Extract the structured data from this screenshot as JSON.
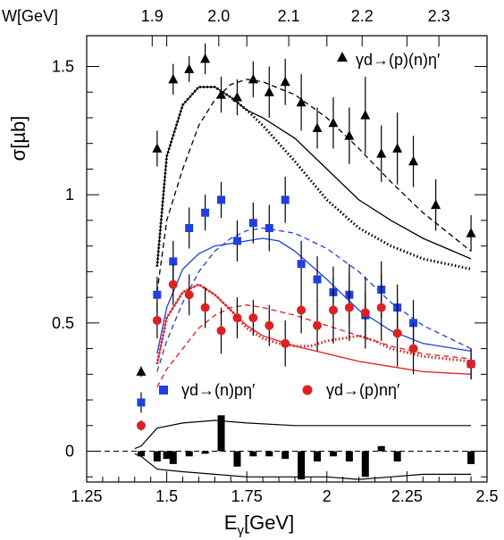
{
  "chart_data": {
    "type": "scatter",
    "title": "",
    "xlabel_base": "E",
    "xlabel_sub": "γ",
    "xlabel_unit": "[GeV]",
    "ylabel": "σ[µb]",
    "top_axis_label": "W[GeV]",
    "xlim": [
      1.25,
      2.5
    ],
    "ylim": [
      -0.12,
      1.62
    ],
    "x_ticks": [
      "1.25",
      "1.5",
      "1.75",
      "2",
      "2.25",
      "2.5"
    ],
    "y_ticks": [
      "0",
      "0.5",
      "1",
      "1.5"
    ],
    "top_ticks": [
      "1.9",
      "2.0",
      "2.1",
      "2.2",
      "2.3"
    ],
    "grid": false,
    "legend": [
      {
        "label": "γd→(p)(n)η′",
        "marker": "triangle",
        "color": "#000000",
        "position": "top-right"
      },
      {
        "label": "γd→(n)pη′",
        "marker": "square",
        "color": "#1f3fe0",
        "position": "bottom-center"
      },
      {
        "label": "γd→(p)nη′",
        "marker": "circle",
        "color": "#e01f1f",
        "position": "bottom-right"
      }
    ],
    "series": [
      {
        "name": "γd→(p)(n)η′",
        "marker": "triangle",
        "color": "#000000",
        "points": [
          {
            "x": 1.42,
            "y": 0.31,
            "err": 0.02
          },
          {
            "x": 1.47,
            "y": 1.18,
            "err": 0.07
          },
          {
            "x": 1.52,
            "y": 1.45,
            "err": 0.06
          },
          {
            "x": 1.57,
            "y": 1.49,
            "err": 0.05
          },
          {
            "x": 1.62,
            "y": 1.53,
            "err": 0.06
          },
          {
            "x": 1.67,
            "y": 1.39,
            "err": 0.07
          },
          {
            "x": 1.72,
            "y": 1.38,
            "err": 0.07
          },
          {
            "x": 1.77,
            "y": 1.45,
            "err": 0.07
          },
          {
            "x": 1.82,
            "y": 1.4,
            "err": 0.1
          },
          {
            "x": 1.87,
            "y": 1.44,
            "err": 0.09
          },
          {
            "x": 1.92,
            "y": 1.36,
            "err": 0.11
          },
          {
            "x": 1.97,
            "y": 1.26,
            "err": 0.08
          },
          {
            "x": 2.02,
            "y": 1.28,
            "err": 0.1
          },
          {
            "x": 2.07,
            "y": 1.23,
            "err": 0.11
          },
          {
            "x": 2.12,
            "y": 1.31,
            "err": 0.15
          },
          {
            "x": 2.17,
            "y": 1.16,
            "err": 0.11
          },
          {
            "x": 2.22,
            "y": 1.18,
            "err": 0.14
          },
          {
            "x": 2.27,
            "y": 1.13,
            "err": 0.1
          },
          {
            "x": 2.34,
            "y": 0.96,
            "err": 0.1
          },
          {
            "x": 2.45,
            "y": 0.85,
            "err": 0.07
          }
        ]
      },
      {
        "name": "γd→(n)pη′",
        "marker": "square",
        "color": "#1f3fe0",
        "points": [
          {
            "x": 1.42,
            "y": 0.19,
            "err": 0.04
          },
          {
            "x": 1.47,
            "y": 0.61,
            "err": 0.07
          },
          {
            "x": 1.52,
            "y": 0.74,
            "err": 0.08
          },
          {
            "x": 1.57,
            "y": 0.87,
            "err": 0.08
          },
          {
            "x": 1.62,
            "y": 0.93,
            "err": 0.07
          },
          {
            "x": 1.67,
            "y": 0.98,
            "err": 0.07
          },
          {
            "x": 1.72,
            "y": 0.82,
            "err": 0.08
          },
          {
            "x": 1.77,
            "y": 0.89,
            "err": 0.08
          },
          {
            "x": 1.82,
            "y": 0.87,
            "err": 0.09
          },
          {
            "x": 1.87,
            "y": 0.98,
            "err": 0.09
          },
          {
            "x": 1.92,
            "y": 0.73,
            "err": 0.09
          },
          {
            "x": 1.97,
            "y": 0.67,
            "err": 0.09
          },
          {
            "x": 2.02,
            "y": 0.62,
            "err": 0.1
          },
          {
            "x": 2.07,
            "y": 0.61,
            "err": 0.12
          },
          {
            "x": 2.12,
            "y": 0.53,
            "err": 0.09
          },
          {
            "x": 2.17,
            "y": 0.63,
            "err": 0.11
          },
          {
            "x": 2.22,
            "y": 0.56,
            "err": 0.09
          },
          {
            "x": 2.27,
            "y": 0.5,
            "err": 0.09
          },
          {
            "x": 2.45,
            "y": 0.34,
            "err": 0.06
          }
        ]
      },
      {
        "name": "γd→(p)nη′",
        "marker": "circle",
        "color": "#e01f1f",
        "points": [
          {
            "x": 1.42,
            "y": 0.1,
            "err": 0.02
          },
          {
            "x": 1.47,
            "y": 0.51,
            "err": 0.07
          },
          {
            "x": 1.52,
            "y": 0.65,
            "err": 0.08
          },
          {
            "x": 1.57,
            "y": 0.61,
            "err": 0.08
          },
          {
            "x": 1.62,
            "y": 0.56,
            "err": 0.08
          },
          {
            "x": 1.67,
            "y": 0.47,
            "err": 0.09
          },
          {
            "x": 1.72,
            "y": 0.52,
            "err": 0.08
          },
          {
            "x": 1.77,
            "y": 0.52,
            "err": 0.07
          },
          {
            "x": 1.82,
            "y": 0.49,
            "err": 0.08
          },
          {
            "x": 1.87,
            "y": 0.42,
            "err": 0.09
          },
          {
            "x": 1.92,
            "y": 0.55,
            "err": 0.09
          },
          {
            "x": 1.97,
            "y": 0.49,
            "err": 0.1
          },
          {
            "x": 2.02,
            "y": 0.55,
            "err": 0.13
          },
          {
            "x": 2.07,
            "y": 0.56,
            "err": 0.13
          },
          {
            "x": 2.12,
            "y": 0.54,
            "err": 0.14
          },
          {
            "x": 2.17,
            "y": 0.56,
            "err": 0.13
          },
          {
            "x": 2.22,
            "y": 0.46,
            "err": 0.13
          },
          {
            "x": 2.27,
            "y": 0.4,
            "err": 0.1
          },
          {
            "x": 2.45,
            "y": 0.34,
            "err": 0.06
          }
        ]
      }
    ],
    "curves": [
      {
        "color": "#000000",
        "style": "solid",
        "points": [
          [
            1.47,
            0.72
          ],
          [
            1.5,
            1.15
          ],
          [
            1.55,
            1.35
          ],
          [
            1.6,
            1.42
          ],
          [
            1.65,
            1.42
          ],
          [
            1.7,
            1.38
          ],
          [
            1.75,
            1.33
          ],
          [
            1.8,
            1.3
          ],
          [
            1.9,
            1.22
          ],
          [
            2.0,
            1.1
          ],
          [
            2.1,
            0.98
          ],
          [
            2.2,
            0.9
          ],
          [
            2.3,
            0.83
          ],
          [
            2.45,
            0.75
          ]
        ]
      },
      {
        "color": "#000000",
        "style": "dashed",
        "points": [
          [
            1.47,
            0.62
          ],
          [
            1.5,
            0.9
          ],
          [
            1.55,
            1.1
          ],
          [
            1.6,
            1.27
          ],
          [
            1.65,
            1.37
          ],
          [
            1.7,
            1.43
          ],
          [
            1.75,
            1.45
          ],
          [
            1.8,
            1.44
          ],
          [
            1.9,
            1.39
          ],
          [
            2.0,
            1.3
          ],
          [
            2.1,
            1.18
          ],
          [
            2.2,
            1.05
          ],
          [
            2.3,
            0.93
          ],
          [
            2.45,
            0.78
          ]
        ]
      },
      {
        "color": "#000000",
        "style": "dotted",
        "points": [
          [
            1.47,
            0.72
          ],
          [
            1.5,
            1.15
          ],
          [
            1.55,
            1.35
          ],
          [
            1.6,
            1.42
          ],
          [
            1.65,
            1.42
          ],
          [
            1.7,
            1.38
          ],
          [
            1.75,
            1.33
          ],
          [
            1.8,
            1.27
          ],
          [
            1.9,
            1.13
          ],
          [
            2.0,
            0.98
          ],
          [
            2.1,
            0.87
          ],
          [
            2.2,
            0.8
          ],
          [
            2.3,
            0.75
          ],
          [
            2.45,
            0.71
          ]
        ]
      },
      {
        "color": "#1f3fe0",
        "style": "solid",
        "points": [
          [
            1.47,
            0.38
          ],
          [
            1.5,
            0.56
          ],
          [
            1.55,
            0.71
          ],
          [
            1.6,
            0.77
          ],
          [
            1.65,
            0.8
          ],
          [
            1.7,
            0.81
          ],
          [
            1.75,
            0.82
          ],
          [
            1.8,
            0.83
          ],
          [
            1.85,
            0.82
          ],
          [
            1.9,
            0.78
          ],
          [
            2.0,
            0.67
          ],
          [
            2.1,
            0.55
          ],
          [
            2.2,
            0.47
          ],
          [
            2.3,
            0.42
          ],
          [
            2.45,
            0.39
          ]
        ]
      },
      {
        "color": "#1f3fe0",
        "style": "dashed",
        "points": [
          [
            1.47,
            0.31
          ],
          [
            1.5,
            0.43
          ],
          [
            1.55,
            0.58
          ],
          [
            1.6,
            0.7
          ],
          [
            1.65,
            0.78
          ],
          [
            1.7,
            0.83
          ],
          [
            1.75,
            0.86
          ],
          [
            1.8,
            0.87
          ],
          [
            1.9,
            0.85
          ],
          [
            2.0,
            0.79
          ],
          [
            2.1,
            0.7
          ],
          [
            2.2,
            0.58
          ],
          [
            2.3,
            0.49
          ],
          [
            2.45,
            0.4
          ]
        ]
      },
      {
        "color": "#e01f1f",
        "style": "solid",
        "points": [
          [
            1.47,
            0.34
          ],
          [
            1.5,
            0.52
          ],
          [
            1.55,
            0.62
          ],
          [
            1.6,
            0.65
          ],
          [
            1.65,
            0.61
          ],
          [
            1.7,
            0.55
          ],
          [
            1.75,
            0.49
          ],
          [
            1.8,
            0.45
          ],
          [
            1.9,
            0.41
          ],
          [
            2.0,
            0.38
          ],
          [
            2.1,
            0.35
          ],
          [
            2.2,
            0.33
          ],
          [
            2.3,
            0.31
          ],
          [
            2.45,
            0.3
          ]
        ]
      },
      {
        "color": "#e01f1f",
        "style": "dashed",
        "points": [
          [
            1.47,
            0.25
          ],
          [
            1.5,
            0.32
          ],
          [
            1.55,
            0.4
          ],
          [
            1.6,
            0.48
          ],
          [
            1.65,
            0.53
          ],
          [
            1.7,
            0.56
          ],
          [
            1.75,
            0.57
          ],
          [
            1.8,
            0.56
          ],
          [
            1.9,
            0.53
          ],
          [
            2.0,
            0.49
          ],
          [
            2.1,
            0.45
          ],
          [
            2.2,
            0.41
          ],
          [
            2.3,
            0.38
          ],
          [
            2.45,
            0.36
          ]
        ]
      },
      {
        "color": "#e01f1f",
        "style": "dotted",
        "points": [
          [
            1.47,
            0.34
          ],
          [
            1.5,
            0.52
          ],
          [
            1.55,
            0.62
          ],
          [
            1.6,
            0.65
          ],
          [
            1.65,
            0.61
          ],
          [
            1.7,
            0.55
          ],
          [
            1.75,
            0.48
          ],
          [
            1.8,
            0.44
          ],
          [
            1.85,
            0.42
          ],
          [
            1.9,
            0.41
          ],
          [
            1.95,
            0.41
          ],
          [
            2.0,
            0.43
          ],
          [
            2.05,
            0.44
          ],
          [
            2.1,
            0.45
          ],
          [
            2.15,
            0.43
          ],
          [
            2.2,
            0.4
          ],
          [
            2.3,
            0.37
          ],
          [
            2.45,
            0.35
          ]
        ]
      }
    ],
    "systematic_band": {
      "upper": [
        [
          1.4,
          0.01
        ],
        [
          1.42,
          0.02
        ],
        [
          1.47,
          0.09
        ],
        [
          1.55,
          0.11
        ],
        [
          1.65,
          0.12
        ],
        [
          1.75,
          0.11
        ],
        [
          1.9,
          0.1
        ],
        [
          2.0,
          0.1
        ],
        [
          2.1,
          0.1
        ],
        [
          2.2,
          0.1
        ],
        [
          2.3,
          0.1
        ],
        [
          2.45,
          0.1
        ]
      ],
      "lower": [
        [
          1.4,
          -0.01
        ],
        [
          1.42,
          -0.02
        ],
        [
          1.47,
          -0.07
        ],
        [
          1.55,
          -0.08
        ],
        [
          1.65,
          -0.09
        ],
        [
          1.75,
          -0.1
        ],
        [
          1.9,
          -0.1
        ],
        [
          2.0,
          -0.1
        ],
        [
          2.1,
          -0.11
        ],
        [
          2.2,
          -0.1
        ],
        [
          2.3,
          -0.09
        ],
        [
          2.45,
          -0.09
        ]
      ]
    },
    "systematic_bars": [
      {
        "x": 1.42,
        "y": -0.02
      },
      {
        "x": 1.47,
        "y": -0.04
      },
      {
        "x": 1.5,
        "y": -0.03
      },
      {
        "x": 1.52,
        "y": -0.05
      },
      {
        "x": 1.57,
        "y": -0.02
      },
      {
        "x": 1.62,
        "y": -0.01
      },
      {
        "x": 1.67,
        "y": 0.14
      },
      {
        "x": 1.72,
        "y": -0.06
      },
      {
        "x": 1.77,
        "y": -0.02
      },
      {
        "x": 1.82,
        "y": -0.02
      },
      {
        "x": 1.87,
        "y": -0.03
      },
      {
        "x": 1.92,
        "y": -0.11
      },
      {
        "x": 1.97,
        "y": -0.04
      },
      {
        "x": 2.02,
        "y": -0.02
      },
      {
        "x": 2.07,
        "y": -0.04
      },
      {
        "x": 2.12,
        "y": -0.1
      },
      {
        "x": 2.17,
        "y": 0.02
      },
      {
        "x": 2.22,
        "y": -0.04
      },
      {
        "x": 2.45,
        "y": -0.05
      }
    ]
  }
}
